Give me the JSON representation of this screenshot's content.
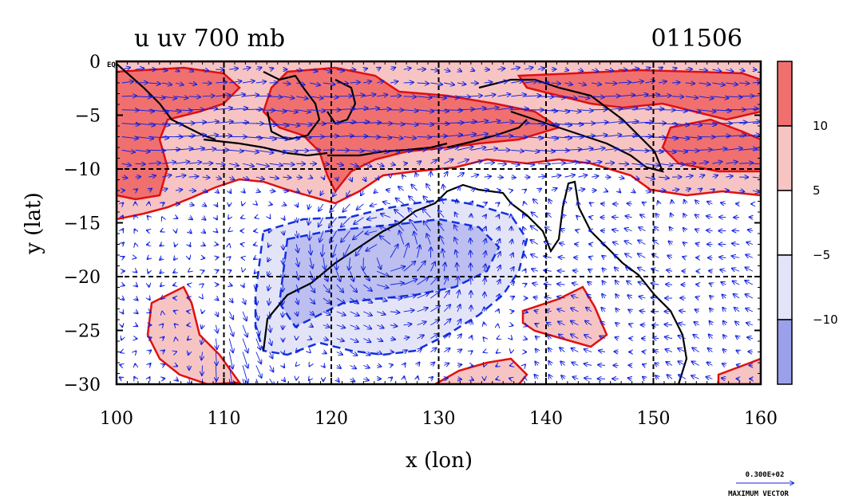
{
  "chart_data": {
    "type": "contour+vector map",
    "title": "u uv 700 mb",
    "date_label": "011506",
    "xlabel": "x (lon)",
    "ylabel": "y (lat)",
    "xlim": [
      100,
      160
    ],
    "ylim": [
      -30,
      0
    ],
    "x_ticks": [
      100,
      110,
      120,
      130,
      140,
      150,
      160
    ],
    "x_tick_labels": [
      "100",
      "110",
      "120",
      "130",
      "140",
      "150",
      "160"
    ],
    "y_ticks": [
      0,
      -5,
      -10,
      -15,
      -20,
      -25,
      -30
    ],
    "y_tick_labels": [
      "0",
      "−5",
      "−10",
      "−15",
      "−20",
      "−25",
      "−30"
    ],
    "y_top_suffix": "EQ",
    "grid_lon": [
      110,
      120,
      130,
      140,
      150
    ],
    "grid_lat": [
      -10,
      -20
    ],
    "colorbar": {
      "levels": [
        10,
        5,
        -5,
        -10
      ],
      "labels": [
        "10",
        "5",
        "−5",
        "−10"
      ],
      "colors": [
        "#f07070",
        "#f7c4c4",
        "#ffffff",
        "#e4e4f8",
        "#9aa0ea"
      ]
    },
    "vector_legend": {
      "value": "0.300E+02",
      "label": "MAXIMUM VECTOR"
    },
    "colors": {
      "positive_contour": "#e01010",
      "negative_contour": "#1030e0",
      "vector": "#1020e0",
      "coast": "#000000"
    }
  }
}
